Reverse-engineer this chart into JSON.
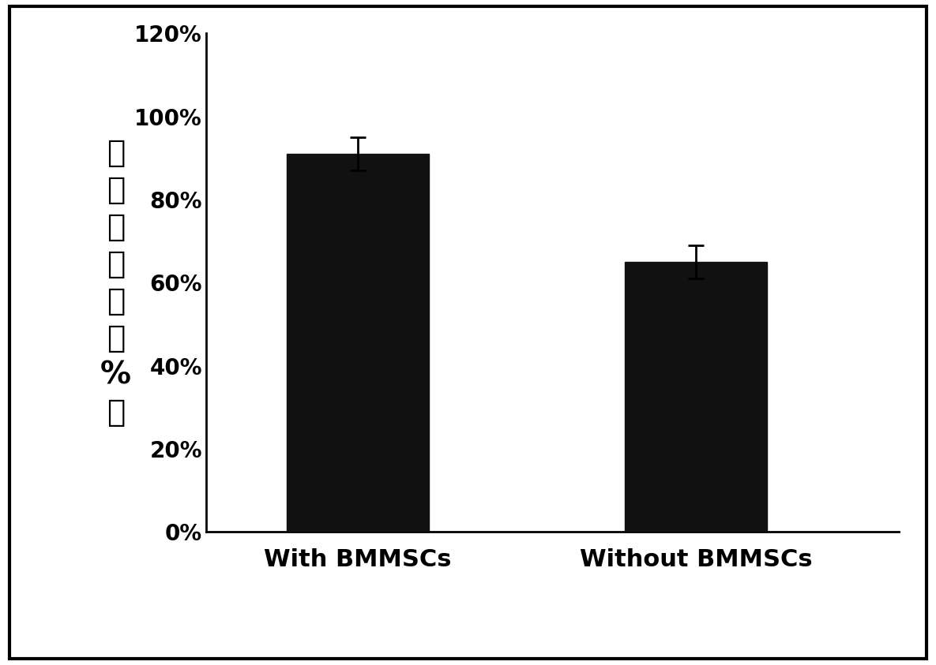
{
  "categories": [
    "With BMMSCs",
    "Without BMMSCs"
  ],
  "values": [
    0.91,
    0.65
  ],
  "errors": [
    0.04,
    0.04
  ],
  "bar_color": "#111111",
  "bar_width": 0.42,
  "ylim": [
    0,
    1.2
  ],
  "yticks": [
    0.0,
    0.2,
    0.4,
    0.6,
    0.8,
    1.0,
    1.2
  ],
  "ytick_labels": [
    "0%",
    "20%",
    "40%",
    "60%",
    "80%",
    "100%",
    "120%"
  ],
  "ylabel_line1": "细",
  "ylabel_line2": "胞",
  "ylabel_line3": "粘",
  "ylabel_line4": "附",
  "ylabel_line5": "率",
  "ylabel_line6": "（",
  "ylabel_line7": "%",
  "ylabel_line8": "）",
  "ylabel_fontsize": 28,
  "xlabel_fontsize": 22,
  "tick_fontsize": 20,
  "background_color": "#ffffff",
  "error_cap_size": 7,
  "error_linewidth": 2.0,
  "spine_linewidth": 2.0
}
